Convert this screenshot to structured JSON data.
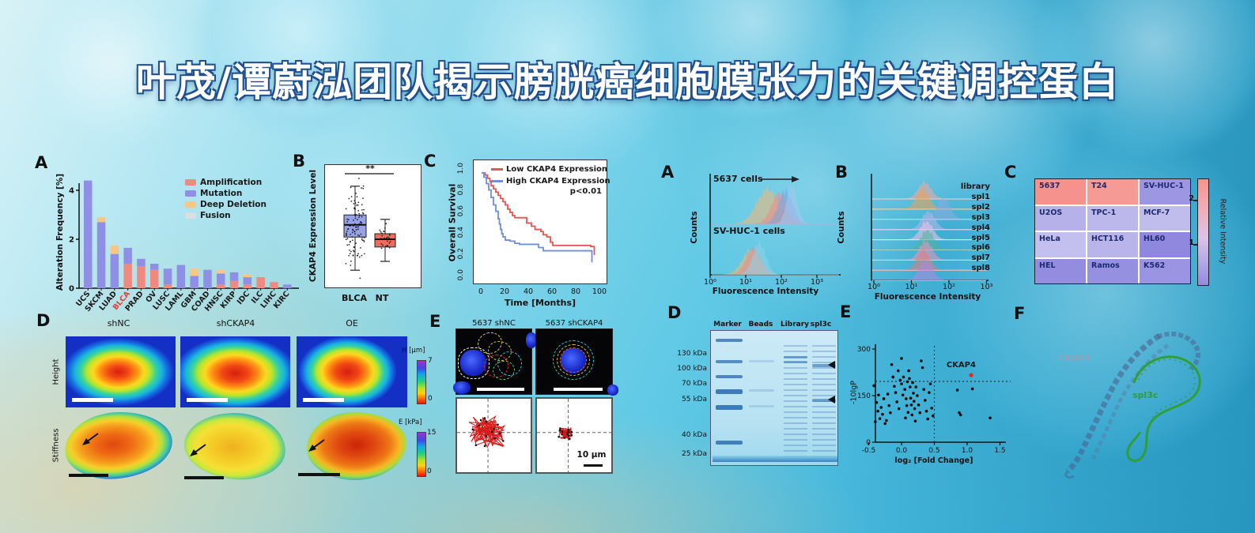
{
  "title": "叶茂/谭蔚泓团队揭示膀胱癌细胞膜张力的关键调控蛋白",
  "panels": {
    "alteration": {
      "label": "A"
    },
    "expression": {
      "label": "B"
    },
    "survival": {
      "label": "C"
    },
    "afm": {
      "label": "D",
      "columns": [
        "shNC",
        "shCKAP4",
        "OE"
      ],
      "rows": [
        "Height",
        "Stiffness"
      ],
      "height_colorbar": {
        "title": "H [μm]",
        "max": "7",
        "min": "0"
      },
      "stiffness_colorbar": {
        "title": "E [kPa]",
        "max": "15",
        "min": "0"
      }
    },
    "migration": {
      "label": "E",
      "columns": [
        "5637 shNC",
        "5637 shCKAP4"
      ],
      "scalebar": "10 μm"
    },
    "flow": {
      "label": "A"
    },
    "selex": {
      "label": "B"
    },
    "heatmap": {
      "label": "C"
    },
    "gel": {
      "label": "D",
      "lanes": [
        "Marker",
        "Beads",
        "Library",
        "spl3c"
      ],
      "weights": [
        "130 kDa",
        "100 kDa",
        "70 kDa",
        "55 kDa",
        "40 kDa",
        "25 kDa"
      ]
    },
    "volcano": {
      "label": "E"
    },
    "structure": {
      "label": "F",
      "protein_label": "CKAP4",
      "aptamer_label": "spl3c"
    }
  },
  "chart_data": [
    {
      "name": "alteration_frequency",
      "type": "bar",
      "ylabel": "Alteration Frequency [%]",
      "ylim": [
        0,
        4.6
      ],
      "yticks": [
        0,
        2,
        4
      ],
      "categories": [
        "UCS",
        "SKCM",
        "LUAD",
        "BLCA",
        "PRAD",
        "OV",
        "LUSC",
        "LAML",
        "GBM",
        "COAD",
        "HNSC",
        "KIRP",
        "IDC",
        "ILC",
        "LIHC",
        "KIRC"
      ],
      "highlight_category": "BLCA",
      "series": [
        {
          "name": "Amplification",
          "color": "#f08a80",
          "values": [
            0,
            0,
            0,
            1.0,
            0.9,
            0.75,
            0.15,
            0,
            0,
            0,
            0.15,
            0.3,
            0.15,
            0.45,
            0.25,
            0
          ]
        },
        {
          "name": "Mutation",
          "color": "#8f8fe6",
          "values": [
            4.4,
            2.7,
            1.4,
            0.65,
            0.3,
            0.25,
            0.65,
            0.95,
            0.5,
            0.75,
            0.45,
            0.35,
            0.3,
            0,
            0,
            0.15
          ]
        },
        {
          "name": "Deep Deletion",
          "color": "#f7c884",
          "values": [
            0,
            0.2,
            0.35,
            0,
            0,
            0,
            0,
            0,
            0.3,
            0,
            0.15,
            0,
            0.1,
            0,
            0,
            0
          ]
        },
        {
          "name": "Fusion",
          "color": "#dcdce4",
          "values": [
            0,
            0,
            0,
            0,
            0,
            0,
            0,
            0,
            0,
            0,
            0,
            0,
            0,
            0,
            0,
            0
          ]
        }
      ]
    },
    {
      "name": "ckap4_expression_boxplot",
      "type": "box",
      "ylabel": "CKAP4 Expression Level",
      "significance": "**",
      "groups": [
        {
          "label": "BLCA",
          "color": "#97a3e6",
          "box": [
            0.42,
            0.62
          ],
          "median": 0.53,
          "whiskers": [
            0.12,
            0.88
          ]
        },
        {
          "label": "NT",
          "color": "#ef6a5f",
          "box": [
            0.33,
            0.45
          ],
          "median": 0.4,
          "whiskers": [
            0.2,
            0.58
          ]
        }
      ]
    },
    {
      "name": "overall_survival",
      "type": "line",
      "xlabel": "Time [Months]",
      "ylabel": "Overall Survival",
      "xlim": [
        0,
        100
      ],
      "ylim": [
        0,
        1
      ],
      "xticks": [
        0,
        20,
        40,
        60,
        80,
        100
      ],
      "yticks": [
        "0.0",
        "0.2",
        "0.4",
        "0.6",
        "0.8",
        "1.0"
      ],
      "annotation": "p<0.01",
      "series": [
        {
          "name": "Low CKAP4 Expression",
          "color": "#e4574f",
          "points": [
            [
              0,
              1.0
            ],
            [
              3,
              0.98
            ],
            [
              5,
              0.95
            ],
            [
              7,
              0.92
            ],
            [
              8,
              0.88
            ],
            [
              10,
              0.85
            ],
            [
              12,
              0.82
            ],
            [
              14,
              0.79
            ],
            [
              16,
              0.76
            ],
            [
              18,
              0.73
            ],
            [
              20,
              0.7
            ],
            [
              22,
              0.66
            ],
            [
              24,
              0.63
            ],
            [
              26,
              0.6
            ],
            [
              28,
              0.58
            ],
            [
              36,
              0.58
            ],
            [
              38,
              0.53
            ],
            [
              42,
              0.5
            ],
            [
              45,
              0.47
            ],
            [
              50,
              0.45
            ],
            [
              52,
              0.42
            ],
            [
              55,
              0.4
            ],
            [
              58,
              0.35
            ],
            [
              60,
              0.32
            ],
            [
              88,
              0.32
            ],
            [
              92,
              0.31
            ],
            [
              95,
              0.23
            ]
          ]
        },
        {
          "name": "High CKAP4 Expression",
          "color": "#6f8fd8",
          "points": [
            [
              0,
              1.0
            ],
            [
              2,
              0.96
            ],
            [
              4,
              0.9
            ],
            [
              6,
              0.84
            ],
            [
              8,
              0.77
            ],
            [
              10,
              0.7
            ],
            [
              12,
              0.64
            ],
            [
              14,
              0.57
            ],
            [
              15,
              0.52
            ],
            [
              16,
              0.47
            ],
            [
              17,
              0.43
            ],
            [
              18,
              0.4
            ],
            [
              20,
              0.37
            ],
            [
              24,
              0.36
            ],
            [
              28,
              0.34
            ],
            [
              32,
              0.33
            ],
            [
              45,
              0.33
            ],
            [
              48,
              0.3
            ],
            [
              52,
              0.27
            ],
            [
              90,
              0.27
            ],
            [
              93,
              0.16
            ]
          ]
        }
      ]
    },
    {
      "name": "flow_cytometry",
      "type": "area",
      "xlabel": "Fluorescence Intensity",
      "ylabel": "Counts",
      "xticks": [
        "10⁰",
        "10¹",
        "10²",
        "10³"
      ],
      "groups": [
        {
          "label": "5637 cells",
          "arrow": true,
          "curves": [
            {
              "color": "#f5b971",
              "peak_log": 1.62,
              "sigma": 14,
              "height": 42
            },
            {
              "color": "#f08a8a",
              "peak_log": 1.95,
              "sigma": 10,
              "height": 38
            },
            {
              "color": "#7fa3e0",
              "peak_log": 2.12,
              "sigma": 9,
              "height": 40
            },
            {
              "color": "#a8c8f0",
              "peak_log": 2.3,
              "sigma": 6.5,
              "height": 46
            }
          ]
        },
        {
          "label": "SV-HUC-1 cells",
          "arrow": false,
          "curves": [
            {
              "color": "#f5b971",
              "peak_log": 1.15,
              "sigma": 11,
              "height": 30
            },
            {
              "color": "#f08a8a",
              "peak_log": 1.22,
              "sigma": 9,
              "height": 33
            },
            {
              "color": "#8fd4e8",
              "peak_log": 1.38,
              "sigma": 8,
              "height": 38
            }
          ]
        }
      ]
    },
    {
      "name": "selex_enrichment_ridge",
      "type": "area",
      "xlabel": "Fluorescence Intensity",
      "ylabel": "Counts",
      "xticks": [
        "10⁰",
        "10¹",
        "10²",
        "10³"
      ],
      "rows": [
        {
          "label": "library",
          "color": "#f6a9a0",
          "peak_log": 1.35,
          "height": 20
        },
        {
          "label": "spl1",
          "color": "#f2a24e",
          "peak_log": 1.3,
          "height": 24
        },
        {
          "label": "spl2",
          "color": "#8fabdf",
          "peak_log": 1.85,
          "height": 26
        },
        {
          "label": "spl3",
          "color": "#b9b6ea",
          "peak_log": 1.45,
          "height": 22
        },
        {
          "label": "spl4",
          "color": "#f6c4e4",
          "peak_log": 1.4,
          "height": 22
        },
        {
          "label": "spl5",
          "color": "#55b29c",
          "peak_log": 1.42,
          "height": 24
        },
        {
          "label": "spl6",
          "color": "#f293ba",
          "peak_log": 1.38,
          "height": 23
        },
        {
          "label": "spl7",
          "color": "#ec7a78",
          "peak_log": 1.32,
          "height": 24
        },
        {
          "label": "spl8",
          "color": "#b388e2",
          "peak_log": 1.38,
          "height": 25
        }
      ]
    },
    {
      "name": "relative_intensity_heatmap",
      "type": "heatmap",
      "colorbar_label": "Relative Intensity",
      "colorbar_ticks": [
        "2",
        "1"
      ],
      "grid": [
        4,
        3
      ],
      "cells": [
        {
          "label": "5637",
          "value": 2.3,
          "color": "#f5928d"
        },
        {
          "label": "T24",
          "value": 2.2,
          "color": "#f59a95"
        },
        {
          "label": "SV-HUC-1",
          "value": 1.0,
          "color": "#9d97e3"
        },
        {
          "label": "U2OS",
          "value": 1.15,
          "color": "#b6b1e9"
        },
        {
          "label": "TPC-1",
          "value": 1.2,
          "color": "#bcb8eb"
        },
        {
          "label": "MCF-7",
          "value": 1.2,
          "color": "#c0bcec"
        },
        {
          "label": "HeLa",
          "value": 1.25,
          "color": "#c3bfee"
        },
        {
          "label": "HCT116",
          "value": 1.15,
          "color": "#b9b4ea"
        },
        {
          "label": "HL60",
          "value": 0.85,
          "color": "#8f88de"
        },
        {
          "label": "HEL",
          "value": 0.9,
          "color": "#938cdf"
        },
        {
          "label": "Ramos",
          "value": 0.95,
          "color": "#9690e1"
        },
        {
          "label": "K562",
          "value": 0.95,
          "color": "#9a94e2"
        }
      ]
    },
    {
      "name": "proteomics_volcano",
      "type": "scatter",
      "xlabel": "log₂ [Fold Change]",
      "ylabel": "-10lgP",
      "xlim": [
        -0.5,
        1.5
      ],
      "ylim": [
        0,
        320
      ],
      "xticks": [
        "-0.5",
        "0.0",
        "0.5",
        "1.0",
        "1.5"
      ],
      "yticks": [
        0,
        150,
        300
      ],
      "threshold_x": 0.5,
      "threshold_y": 196,
      "highlight": {
        "label": "CKAP4",
        "x": 1.06,
        "y": 216,
        "color": "#e8281e"
      },
      "points": [
        [
          -0.42,
          182
        ],
        [
          -0.4,
          66
        ],
        [
          -0.38,
          128
        ],
        [
          -0.36,
          100
        ],
        [
          -0.35,
          152
        ],
        [
          -0.33,
          76
        ],
        [
          -0.31,
          112
        ],
        [
          -0.29,
          90
        ],
        [
          -0.27,
          140
        ],
        [
          -0.25,
          60
        ],
        [
          -0.23,
          70
        ],
        [
          -0.21,
          155
        ],
        [
          -0.19,
          118
        ],
        [
          -0.17,
          95
        ],
        [
          -0.15,
          250
        ],
        [
          -0.13,
          210
        ],
        [
          -0.11,
          180
        ],
        [
          -0.09,
          160
        ],
        [
          -0.07,
          130
        ],
        [
          -0.05,
          230
        ],
        [
          -0.04,
          108
        ],
        [
          -0.02,
          200
        ],
        [
          0.0,
          270
        ],
        [
          0.0,
          188
        ],
        [
          0.02,
          152
        ],
        [
          0.03,
          210
        ],
        [
          0.05,
          170
        ],
        [
          0.06,
          78
        ],
        [
          0.07,
          140
        ],
        [
          0.08,
          118
        ],
        [
          0.09,
          195
        ],
        [
          0.1,
          96
        ],
        [
          0.11,
          230
        ],
        [
          0.12,
          205
        ],
        [
          0.13,
          178
        ],
        [
          0.14,
          142
        ],
        [
          0.15,
          120
        ],
        [
          0.16,
          88
        ],
        [
          0.17,
          192
        ],
        [
          0.18,
          158
        ],
        [
          0.19,
          132
        ],
        [
          0.2,
          108
        ],
        [
          0.21,
          68
        ],
        [
          0.22,
          178
        ],
        [
          0.24,
          150
        ],
        [
          0.26,
          120
        ],
        [
          0.28,
          95
        ],
        [
          0.3,
          262
        ],
        [
          0.32,
          240
        ],
        [
          0.34,
          170
        ],
        [
          0.36,
          135
        ],
        [
          0.38,
          100
        ],
        [
          0.4,
          75
        ],
        [
          0.42,
          160
        ],
        [
          0.44,
          188
        ],
        [
          0.46,
          110
        ],
        [
          0.48,
          85
        ],
        [
          0.85,
          168
        ],
        [
          1.08,
          172
        ],
        [
          0.88,
          95
        ],
        [
          0.9,
          88
        ],
        [
          1.35,
          78
        ]
      ]
    }
  ]
}
